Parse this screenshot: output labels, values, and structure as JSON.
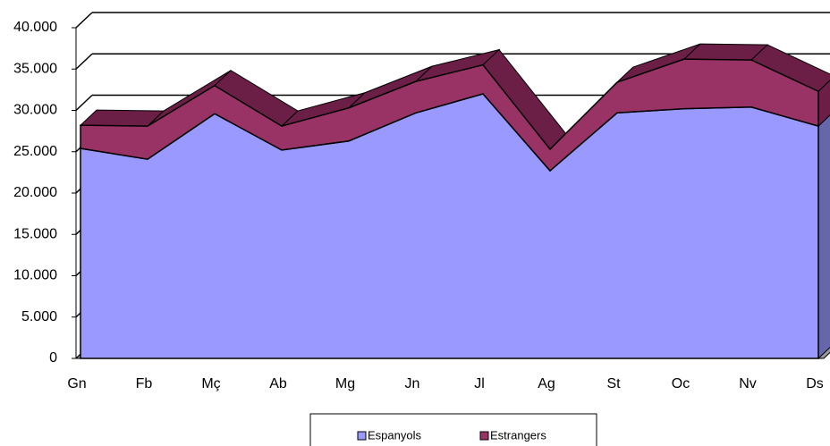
{
  "chart_data": {
    "type": "area3d",
    "categories": [
      "Gn",
      "Fb",
      "Mç",
      "Ab",
      "Mg",
      "Jn",
      "Jl",
      "Ag",
      "St",
      "Oc",
      "Nv",
      "Ds"
    ],
    "series": [
      {
        "name": "Espanyols",
        "color": "#9999ff",
        "values": [
          25400,
          24100,
          29600,
          25200,
          26300,
          29700,
          32000,
          22700,
          29700,
          30200,
          30400,
          28100
        ]
      },
      {
        "name": "Estrangers",
        "color": "#993366",
        "values": [
          2800,
          4000,
          3400,
          2900,
          4000,
          3800,
          3500,
          2600,
          3700,
          6000,
          5700,
          4200
        ]
      }
    ],
    "ylim": [
      0,
      40000
    ],
    "yticks": [
      0,
      {
        "value": 5000,
        "label": "5.000"
      },
      {
        "value": 10000,
        "label": "10.000"
      },
      {
        "value": 15000,
        "label": "15.000"
      },
      {
        "value": 20000,
        "label": "20.000"
      },
      {
        "value": 25000,
        "label": "25.000"
      },
      {
        "value": 30000,
        "label": "30.000"
      },
      {
        "value": 35000,
        "label": "35.000"
      },
      {
        "value": 40000,
        "label": "40.000"
      }
    ],
    "grid": true,
    "stacked": true
  }
}
